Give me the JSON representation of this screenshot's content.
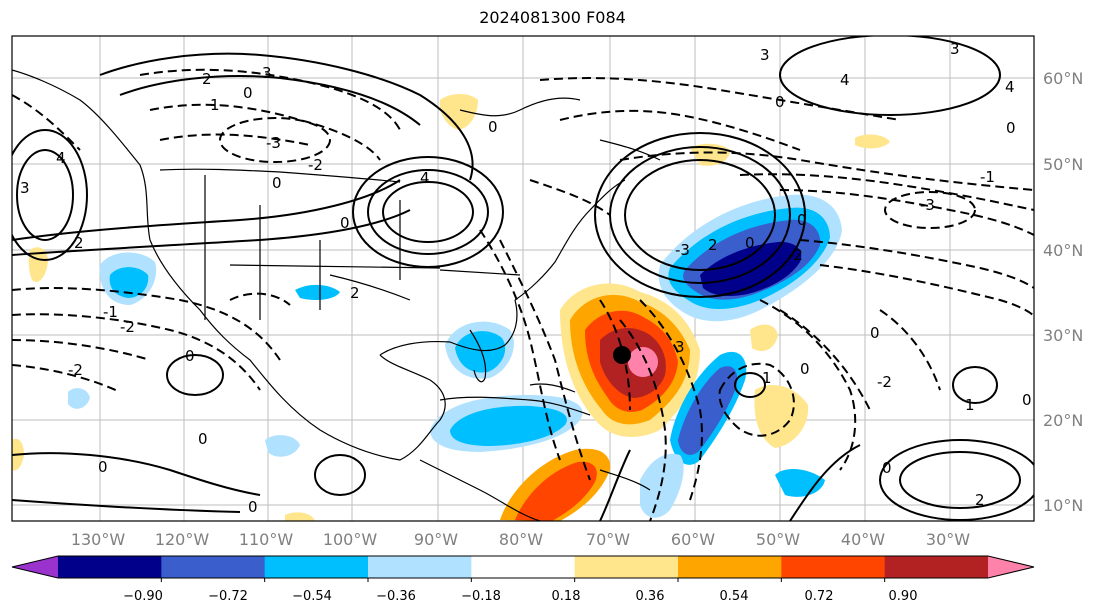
{
  "title": "2024081300 F084",
  "latitude_labels": [
    "60°N",
    "50°N",
    "40°N",
    "30°N",
    "20°N",
    "10°N"
  ],
  "longitude_labels": [
    "130°W",
    "120°W",
    "110°W",
    "100°W",
    "90°W",
    "80°W",
    "70°W",
    "60°W",
    "50°W",
    "40°W",
    "30°W"
  ],
  "colorbar": {
    "tick_labels": [
      "−0.90",
      "−0.72",
      "−0.54",
      "−0.36",
      "−0.18",
      "0.18",
      "0.36",
      "0.54",
      "0.72",
      "0.90"
    ],
    "colors": [
      "#9a32cd",
      "#00008b",
      "#3a5fcd",
      "#00bfff",
      "#b0e2ff",
      "#ffffff",
      "#ffe68c",
      "#ffa500",
      "#ff4500",
      "#b22222",
      "#ff82ab"
    ]
  },
  "contour_labels": [
    "-3",
    "-2",
    "-1",
    "0",
    "1",
    "2",
    "3",
    "4"
  ],
  "marker": "storm-center"
}
